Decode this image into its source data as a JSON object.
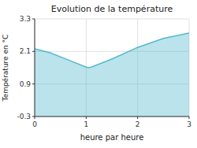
{
  "chart_data": {
    "type": "area",
    "title": "Evolution de la température",
    "x_label": "heure par heure",
    "y_label": "Température en °C",
    "x": [
      0,
      0.3,
      0.7,
      1.0,
      1.05,
      1.1,
      1.5,
      2.0,
      2.5,
      3.0
    ],
    "values": [
      2.2,
      2.05,
      1.75,
      1.52,
      1.5,
      1.52,
      1.82,
      2.25,
      2.58,
      2.78
    ],
    "color": "#55b8d0",
    "xlim": [
      0,
      3
    ],
    "ylim": [
      -0.3,
      3.3
    ],
    "xticks": [
      0,
      1,
      2,
      3
    ],
    "yticks": [
      -0.3,
      0.9,
      2.1,
      3.3
    ],
    "grid": true
  }
}
